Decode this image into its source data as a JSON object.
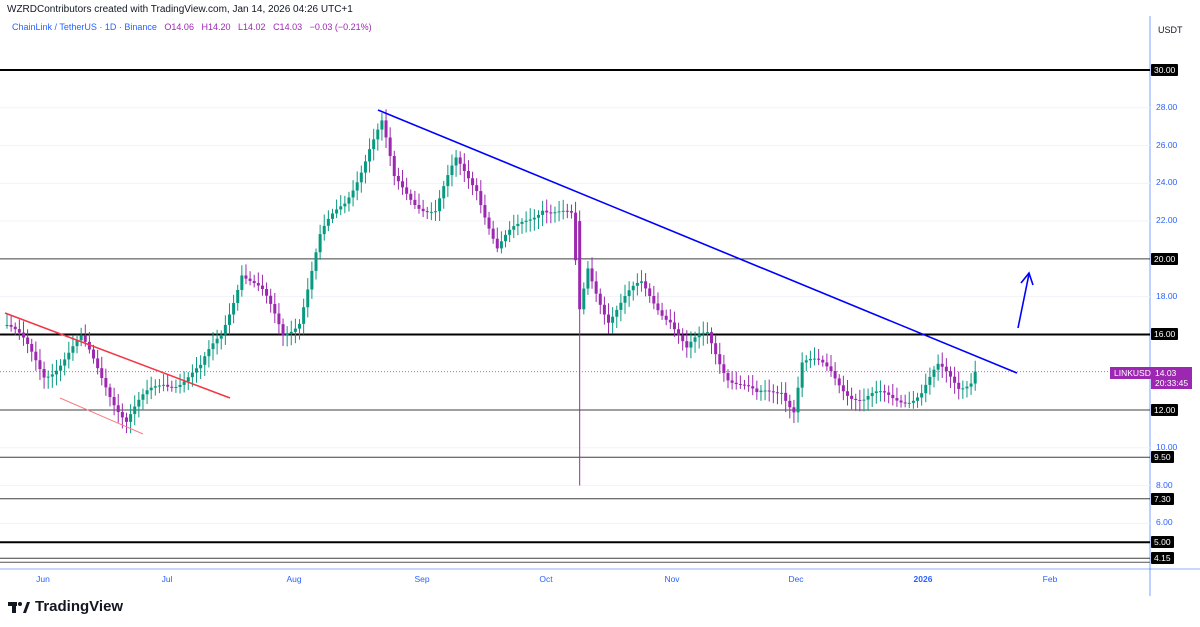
{
  "credit": "WZRDContributors created with TradingView.com, Jan 14, 2026 04:26 UTC+1",
  "legend": {
    "symbol": "ChainLink / TetherUS · 1D · Binance",
    "open": "O14.06",
    "high": "H14.20",
    "low": "L14.02",
    "close": "C14.03",
    "change": "−0.03 (−0.21%)"
  },
  "axis": {
    "currency": "USDT",
    "y_ticks": [
      "28.00",
      "26.00",
      "24.00",
      "22.00",
      "18.00",
      "10.00",
      "8.00",
      "6.00"
    ],
    "x_ticks": [
      "Jun",
      "Jul",
      "Aug",
      "Sep",
      "Oct",
      "Nov",
      "Dec",
      "2026",
      "Feb"
    ]
  },
  "levels": [
    "30.00",
    "20.00",
    "16.00",
    "12.00",
    "9.50",
    "7.30",
    "5.00",
    "4.15"
  ],
  "price_tag": {
    "ticker": "LINKUSDT",
    "price": "14.03",
    "countdown": "20:33:45"
  },
  "logo": "TradingView",
  "colors": {
    "up": "#089981",
    "down": "#9c27b0",
    "trend": "#0000ff",
    "red": "#f23645"
  },
  "chart_data": {
    "type": "candlestick",
    "ylim": [
      3.6,
      31.5
    ],
    "last": 14.03,
    "waypoints": [
      [
        0,
        16.5
      ],
      [
        9,
        14
      ],
      [
        18,
        15.5
      ],
      [
        24,
        13.5
      ],
      [
        29,
        11.5
      ],
      [
        38,
        13.5
      ],
      [
        47,
        14
      ],
      [
        52,
        16
      ],
      [
        57,
        19.5
      ],
      [
        62,
        18
      ],
      [
        67,
        16
      ],
      [
        71,
        17
      ],
      [
        76,
        21
      ],
      [
        82,
        23
      ],
      [
        88,
        26
      ],
      [
        91,
        27
      ],
      [
        94,
        24
      ],
      [
        104,
        22.5
      ],
      [
        109,
        25
      ],
      [
        114,
        24
      ],
      [
        119,
        20.5
      ],
      [
        124,
        21.5
      ],
      [
        130,
        23
      ],
      [
        137,
        22
      ],
      [
        139,
        17
      ],
      [
        141,
        19.5
      ],
      [
        146,
        17
      ],
      [
        154,
        18.5
      ],
      [
        161,
        17
      ],
      [
        165,
        15
      ],
      [
        170,
        16
      ],
      [
        175,
        14
      ],
      [
        182,
        12.5
      ],
      [
        188,
        13.3
      ],
      [
        191,
        12.2
      ],
      [
        193,
        14.5
      ],
      [
        200,
        14
      ],
      [
        205,
        13
      ],
      [
        208,
        12.5
      ],
      [
        215,
        12.6
      ],
      [
        222,
        13
      ],
      [
        226,
        14
      ],
      [
        231,
        13.3
      ],
      [
        235,
        14.03
      ]
    ]
  }
}
